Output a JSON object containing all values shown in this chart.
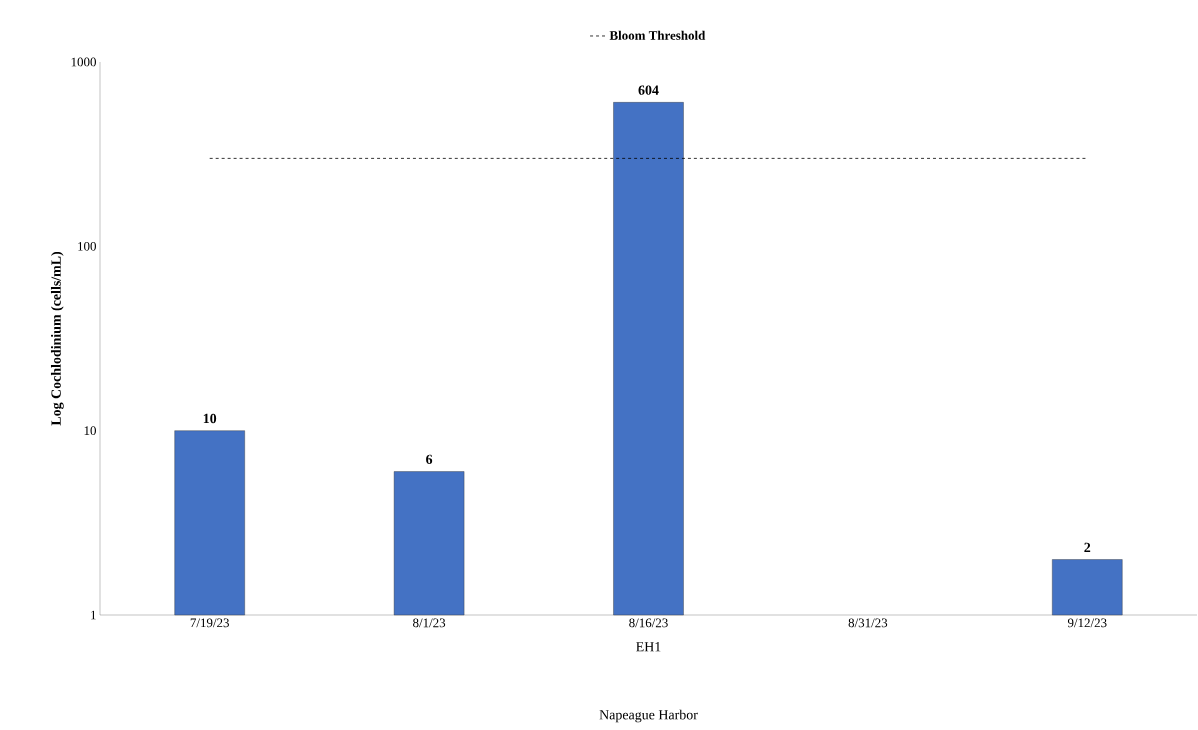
{
  "chart_data": {
    "type": "bar",
    "categories": [
      "7/19/23",
      "8/1/23",
      "8/16/23",
      "8/31/23",
      "9/12/23"
    ],
    "series": [
      {
        "color": "#4472c4",
        "values": [
          10,
          6,
          604,
          null,
          2
        ],
        "value_labels": [
          "10",
          "6",
          "604",
          null,
          "2"
        ]
      },
      {
        "type": "line",
        "name": "Bloom Threshold",
        "color": "#000000",
        "line_style": "dashed",
        "marker": "none",
        "values": [
          300,
          300,
          300,
          300,
          300
        ]
      }
    ],
    "ylim": [
      1,
      1000
    ],
    "yticks": [
      1,
      10,
      100,
      1000
    ],
    "log": "y",
    "legend": "top",
    "ylabel": "Log Cochlodinium (cells/mL)",
    "xlabel": "EH1",
    "annotations": [
      "Napeague Harbor"
    ]
  }
}
